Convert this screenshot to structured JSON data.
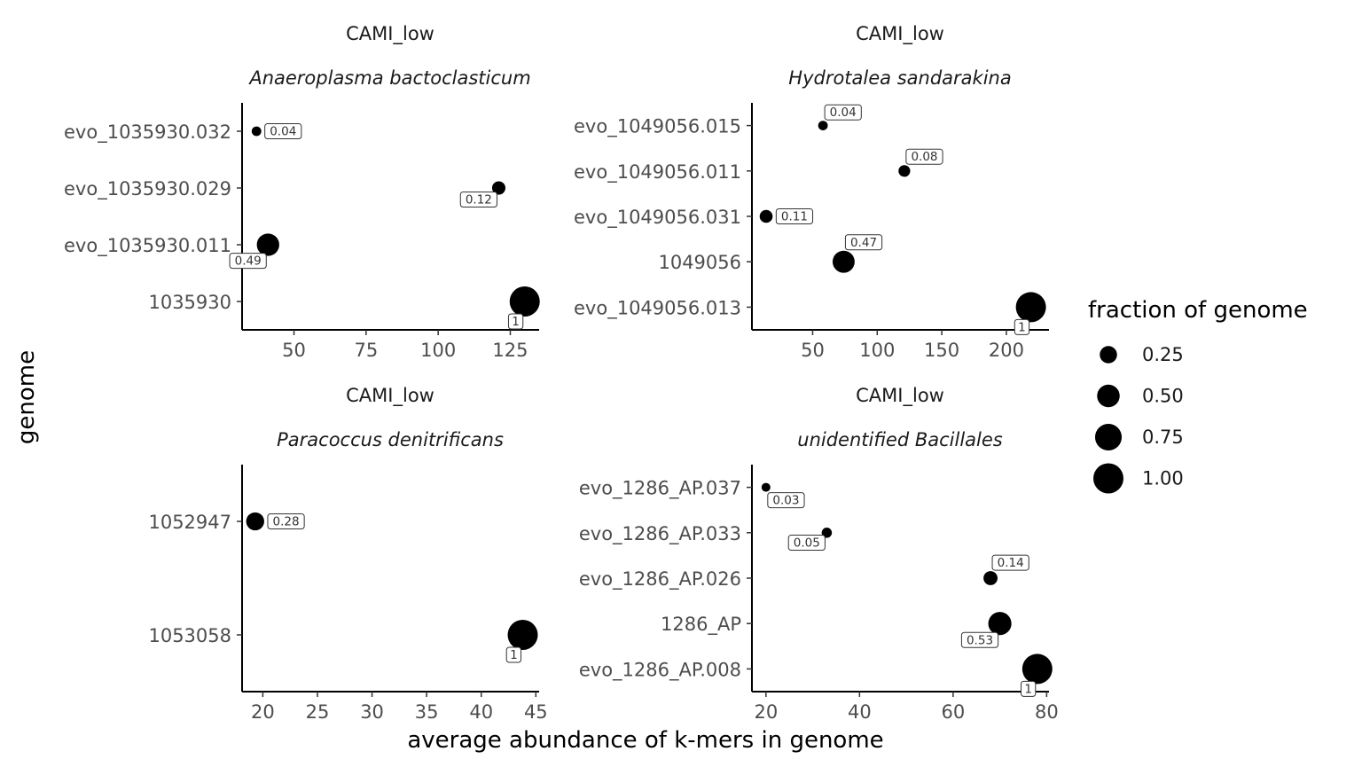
{
  "xlabel": "average abundance of k-mers in genome",
  "ylabel": "genome",
  "legend": {
    "title": "fraction of genome",
    "placement": "right",
    "breaks": [
      0.25,
      0.5,
      0.75,
      1.0
    ],
    "labels": [
      "0.25",
      "0.50",
      "0.75",
      "1.00"
    ]
  },
  "chart_data": [
    {
      "type": "scatter",
      "strip_top": "CAMI_low",
      "strip_bottom": "Anaeroplasma bactoclasticum",
      "categories": [
        "evo_1035930.032",
        "evo_1035930.029",
        "evo_1035930.011",
        "1035930"
      ],
      "xlim": [
        32,
        135
      ],
      "xticks": [
        50,
        75,
        100,
        125
      ],
      "xtick_labels": [
        "50",
        "75",
        "100",
        "125"
      ],
      "points": [
        {
          "genome": "evo_1035930.032",
          "x": 37,
          "fraction": 0.04,
          "label": "0.04",
          "label_pos": "right"
        },
        {
          "genome": "evo_1035930.029",
          "x": 121,
          "fraction": 0.12,
          "label": "0.12",
          "label_pos": "below-left"
        },
        {
          "genome": "evo_1035930.011",
          "x": 41,
          "fraction": 0.49,
          "label": "0.49",
          "label_pos": "below-left"
        },
        {
          "genome": "1035930",
          "x": 130,
          "fraction": 1.0,
          "label": "1",
          "label_pos": "below-left"
        }
      ]
    },
    {
      "type": "scatter",
      "strip_top": "CAMI_low",
      "strip_bottom": "Hydrotalea sandarakina",
      "categories": [
        "evo_1049056.015",
        "evo_1049056.011",
        "evo_1049056.031",
        "1049056",
        "evo_1049056.013"
      ],
      "xlim": [
        3,
        233
      ],
      "xticks": [
        50,
        100,
        150,
        200
      ],
      "xtick_labels": [
        "50",
        "100",
        "150",
        "200"
      ],
      "points": [
        {
          "genome": "evo_1049056.015",
          "x": 58,
          "fraction": 0.04,
          "label": "0.04",
          "label_pos": "above-right"
        },
        {
          "genome": "evo_1049056.011",
          "x": 121,
          "fraction": 0.08,
          "label": "0.08",
          "label_pos": "above-right"
        },
        {
          "genome": "evo_1049056.031",
          "x": 14,
          "fraction": 0.11,
          "label": "0.11",
          "label_pos": "right"
        },
        {
          "genome": "1049056",
          "x": 74,
          "fraction": 0.47,
          "label": "0.47",
          "label_pos": "above-right"
        },
        {
          "genome": "evo_1049056.013",
          "x": 219,
          "fraction": 1.0,
          "label": "1",
          "label_pos": "below-left"
        }
      ]
    },
    {
      "type": "scatter",
      "strip_top": "CAMI_low",
      "strip_bottom": "Paracoccus denitrificans",
      "categories": [
        "1052947",
        "1053058"
      ],
      "xlim": [
        18.1,
        45.3
      ],
      "xticks": [
        20,
        25,
        30,
        35,
        40,
        45
      ],
      "xtick_labels": [
        "20",
        "25",
        "30",
        "35",
        "40",
        "45"
      ],
      "points": [
        {
          "genome": "1052947",
          "x": 19.3,
          "fraction": 0.28,
          "label": "0.28",
          "label_pos": "right"
        },
        {
          "genome": "1053058",
          "x": 43.8,
          "fraction": 1.0,
          "label": "1",
          "label_pos": "below-left"
        }
      ]
    },
    {
      "type": "scatter",
      "strip_top": "CAMI_low",
      "strip_bottom": "unidentified Bacillales",
      "categories": [
        "evo_1286_AP.037",
        "evo_1286_AP.033",
        "evo_1286_AP.026",
        "1286_AP",
        "evo_1286_AP.008"
      ],
      "xlim": [
        17,
        80.5
      ],
      "xticks": [
        20,
        40,
        60,
        80
      ],
      "xtick_labels": [
        "20",
        "40",
        "60",
        "80"
      ],
      "points": [
        {
          "genome": "evo_1286_AP.037",
          "x": 20,
          "fraction": 0.03,
          "label": "0.03",
          "label_pos": "below-right"
        },
        {
          "genome": "evo_1286_AP.033",
          "x": 33,
          "fraction": 0.05,
          "label": "0.05",
          "label_pos": "below-left"
        },
        {
          "genome": "evo_1286_AP.026",
          "x": 68,
          "fraction": 0.14,
          "label": "0.14",
          "label_pos": "above-right"
        },
        {
          "genome": "1286_AP",
          "x": 70,
          "fraction": 0.53,
          "label": "0.53",
          "label_pos": "below-left"
        },
        {
          "genome": "evo_1286_AP.008",
          "x": 78,
          "fraction": 1.0,
          "label": "1",
          "label_pos": "below-left"
        }
      ]
    }
  ]
}
